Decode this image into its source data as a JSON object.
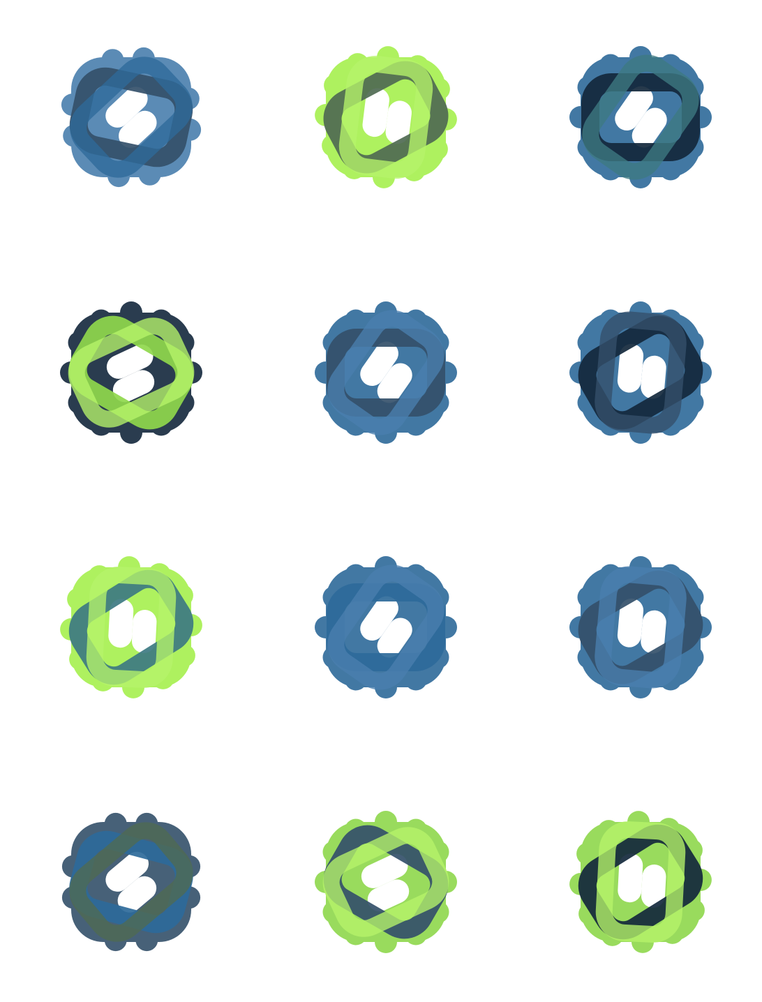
{
  "sheet": {
    "background": "#ffffff"
  },
  "palette": {
    "navy": "#14283c",
    "slate": "#34506a",
    "steel": "#2e6a9a",
    "sky": "#4a7fae",
    "teal": "#3d7a82",
    "olive": "#4f6a52",
    "lime": "#9be84f",
    "lime_light": "#b6f46a",
    "lime_mid": "#8fd84c"
  },
  "emblems": [
    {
      "id": "e1",
      "body": "#4a7fae",
      "band_a": "#34506a",
      "band_b": "#2e6a9a",
      "theme": "blue"
    },
    {
      "id": "e2",
      "body": "#a6f04e",
      "band_a": "#4f6a52",
      "band_b": "#b6f46a",
      "theme": "lime"
    },
    {
      "id": "e3",
      "body": "#2e6a9a",
      "band_a": "#14283c",
      "band_b": "#3d7a82",
      "theme": "teal"
    },
    {
      "id": "e4",
      "body": "#14283c",
      "band_a": "#8fd84c",
      "band_b": "#b6f46a",
      "theme": "lime-navy"
    },
    {
      "id": "e5",
      "body": "#2e6a9a",
      "band_a": "#34506a",
      "band_b": "#4a7fae",
      "theme": "blue"
    },
    {
      "id": "e6",
      "body": "#2e6a9a",
      "band_a": "#14283c",
      "band_b": "#34506a",
      "theme": "navy"
    },
    {
      "id": "e7",
      "body": "#a6f04e",
      "band_a": "#3d7a82",
      "band_b": "#b6f46a",
      "theme": "lime-teal"
    },
    {
      "id": "e8",
      "body": "#2e6a9a",
      "band_a": "#2e6a9a",
      "band_b": "#4a7fae",
      "theme": "blue"
    },
    {
      "id": "e9",
      "body": "#2e6a9a",
      "band_a": "#34506a",
      "band_b": "#4a7fae",
      "theme": "blue"
    },
    {
      "id": "e10",
      "body": "#34506a",
      "band_a": "#2e6a9a",
      "band_b": "#4f6a52",
      "theme": "mixed"
    },
    {
      "id": "e11",
      "body": "#8fd84c",
      "band_a": "#34506a",
      "band_b": "#b6f46a",
      "theme": "lime"
    },
    {
      "id": "e12",
      "body": "#8fd84c",
      "band_a": "#14283c",
      "band_b": "#b6f46a",
      "theme": "lime"
    }
  ]
}
